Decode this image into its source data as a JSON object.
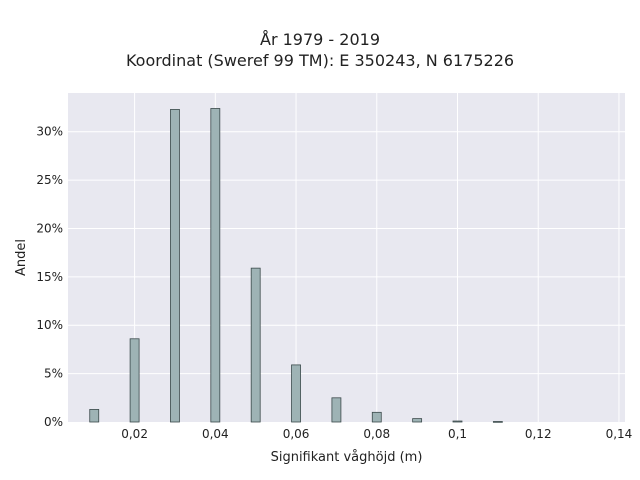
{
  "chart_data": {
    "type": "bar",
    "title": "År 1979 - 2019",
    "subtitle": "Koordinat (Sweref 99 TM): E 350243, N 6175226",
    "xlabel": "Signifikant våghöjd (m)",
    "ylabel": "Andel",
    "x": [
      0.01,
      0.02,
      0.03,
      0.04,
      0.05,
      0.06,
      0.07,
      0.08,
      0.09,
      0.1,
      0.11
    ],
    "values": [
      1.3,
      8.6,
      32.3,
      32.4,
      15.9,
      5.9,
      2.5,
      1.0,
      0.35,
      0.1,
      0.05
    ],
    "xlim": [
      0.0035,
      0.1415
    ],
    "ylim": [
      0,
      34.0
    ],
    "xticks": [
      0.02,
      0.04,
      0.06,
      0.08,
      0.1,
      0.12,
      0.14
    ],
    "xtick_labels": [
      "0,02",
      "0,04",
      "0,06",
      "0,08",
      "0,1",
      "0,12",
      "0,14"
    ],
    "yticks": [
      0,
      5,
      10,
      15,
      20,
      25,
      30
    ],
    "ytick_labels": [
      "0%",
      "5%",
      "10%",
      "15%",
      "20%",
      "25%",
      "30%"
    ],
    "grid": true,
    "colors": {
      "bar": "#9eb3b5",
      "bar_edge": "#3b4a4b",
      "plot_bg": "#e8e8f0",
      "grid": "#ffffff"
    }
  }
}
